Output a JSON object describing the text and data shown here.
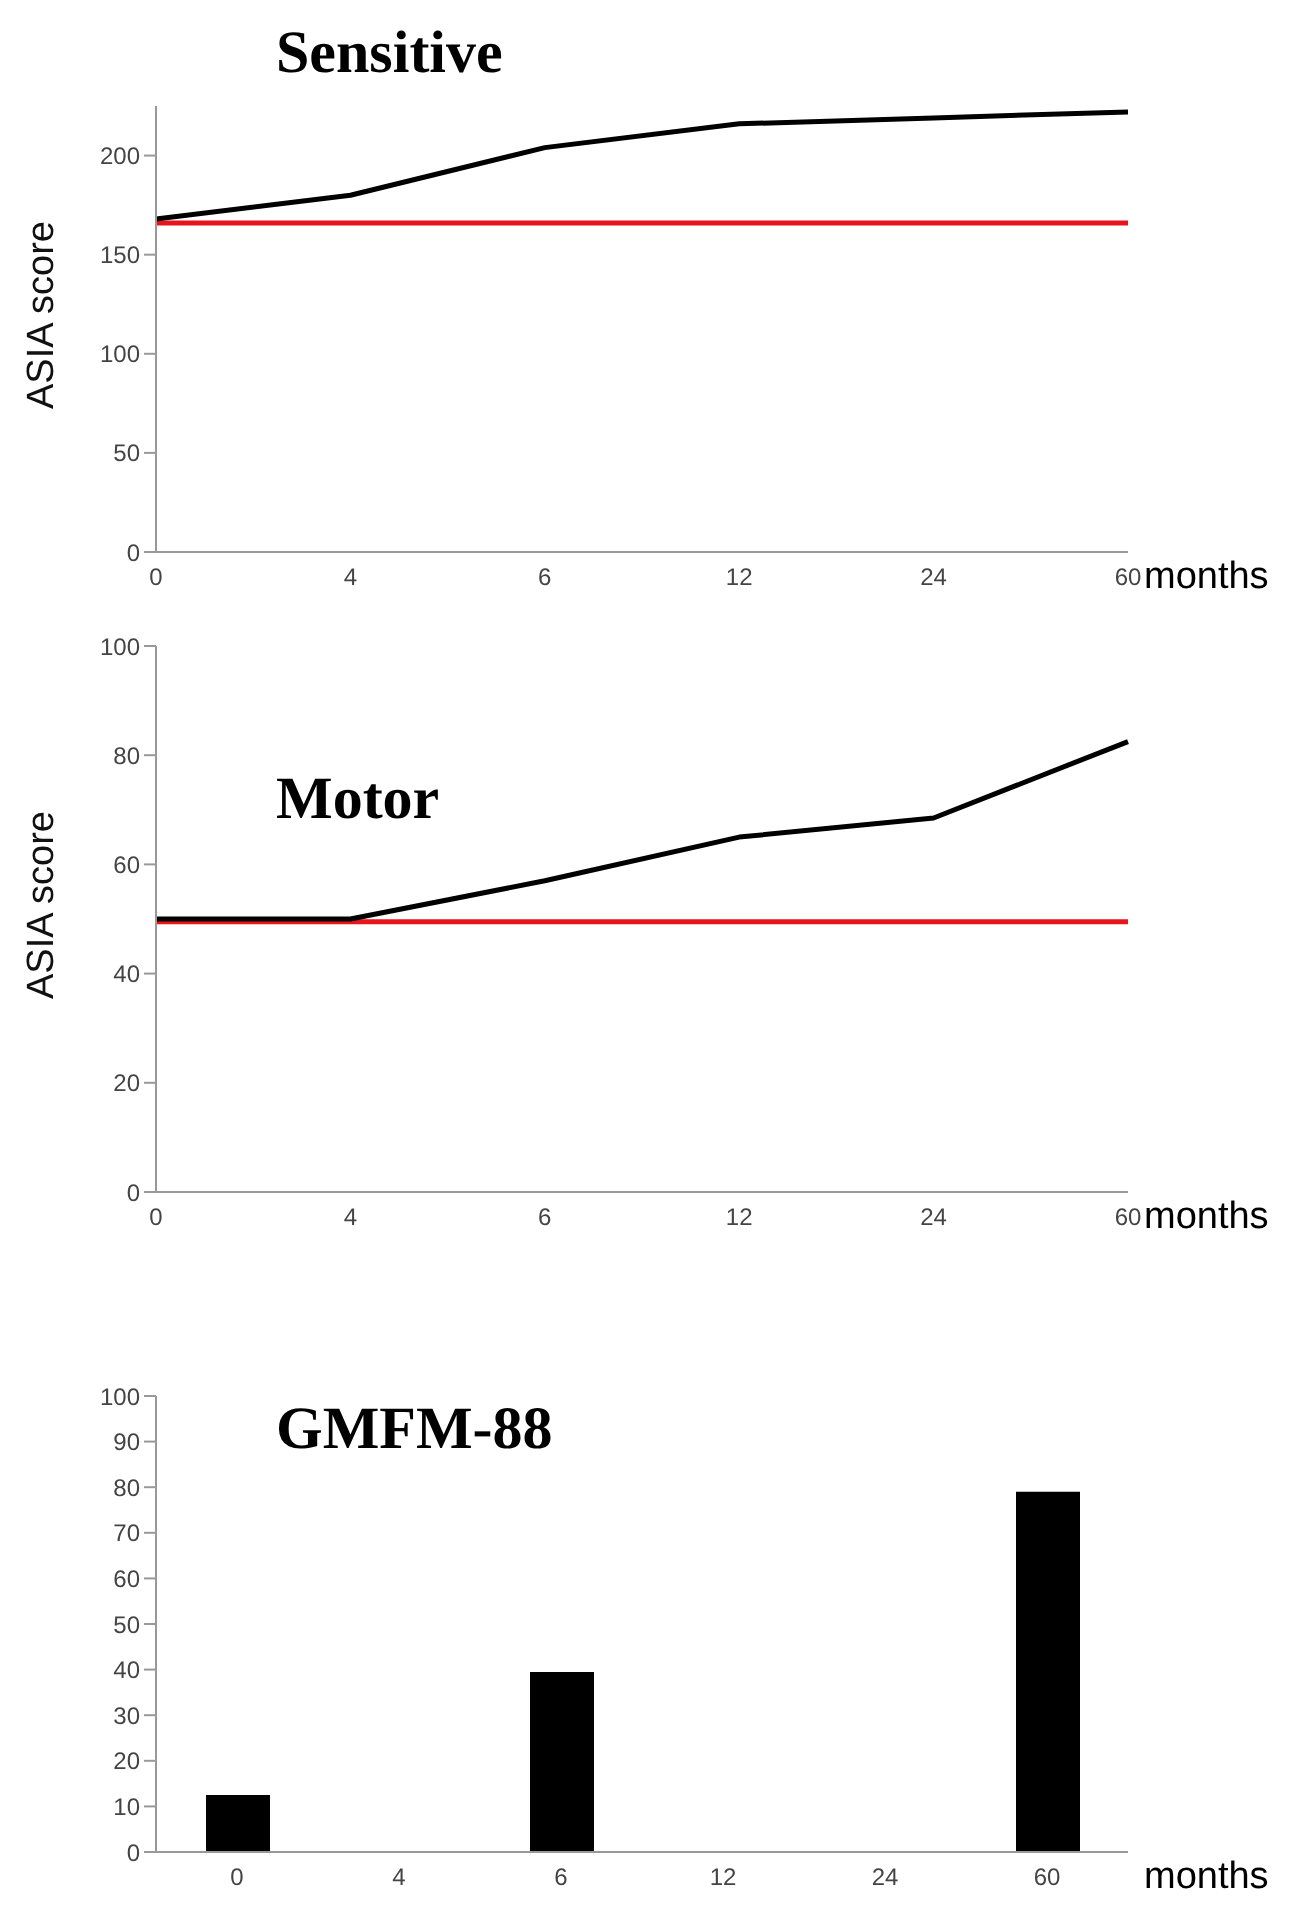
{
  "chart_data": [
    {
      "type": "line",
      "title": "Sensitive",
      "ylabel": "ASIA score",
      "xlabel": "months",
      "categories": [
        "0",
        "4",
        "6",
        "12",
        "24",
        "60"
      ],
      "series": [
        {
          "color": "#000000",
          "values": [
            168,
            180,
            204,
            216,
            219,
            222
          ]
        }
      ],
      "ylim": [
        0,
        225
      ],
      "yticks": [
        0,
        50,
        100,
        150,
        200
      ],
      "marker": "none",
      "ref_lines": [
        {
          "axis": "y",
          "value": 166,
          "color": "#e8141c"
        }
      ]
    },
    {
      "type": "line",
      "title": "Motor",
      "ylabel": "ASIA score",
      "xlabel": "months",
      "categories": [
        "0",
        "4",
        "6",
        "12",
        "24",
        "60"
      ],
      "series": [
        {
          "color": "#000000",
          "values": [
            50,
            50,
            57,
            65,
            68.5,
            82.5
          ]
        }
      ],
      "ylim": [
        0,
        100
      ],
      "yticks": [
        0,
        20,
        40,
        60,
        80,
        100
      ],
      "marker": "none",
      "ref_lines": [
        {
          "axis": "y",
          "value": 49.5,
          "color": "#e8141c"
        }
      ]
    },
    {
      "type": "bar",
      "title": "GMFM-88",
      "xlabel": "months",
      "categories": [
        "0",
        "4",
        "6",
        "12",
        "24",
        "60"
      ],
      "series": [
        {
          "color": "#000000",
          "values": [
            12.5,
            null,
            39.5,
            null,
            null,
            79
          ]
        }
      ],
      "ylim": [
        0,
        100
      ],
      "yticks": [
        0,
        10,
        20,
        30,
        40,
        50,
        60,
        70,
        80,
        90,
        100
      ]
    }
  ]
}
